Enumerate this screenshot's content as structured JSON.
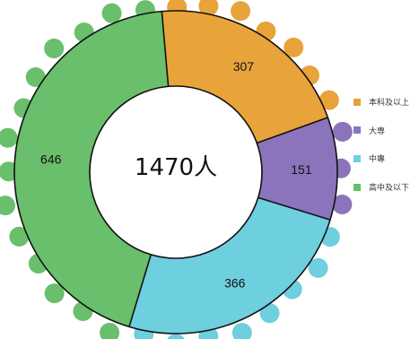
{
  "chart_data": {
    "type": "pie",
    "style": "donut-with-scalloped-rim",
    "center_label": "1470人",
    "categories": [
      "本科及以上",
      "大専",
      "中專",
      "高中及以下"
    ],
    "values": [
      307,
      151,
      366,
      646
    ],
    "colors": [
      "#E8A33A",
      "#8B74BB",
      "#6ECFDE",
      "#69BF6B"
    ],
    "legend_position": "right"
  },
  "legend": {
    "items": [
      {
        "label": "本科及以上",
        "color": "#E8A33A"
      },
      {
        "label": "大専",
        "color": "#8B74BB"
      },
      {
        "label": "中專",
        "color": "#6ECFDE"
      },
      {
        "label": "高中及以下",
        "color": "#69BF6B"
      }
    ]
  }
}
